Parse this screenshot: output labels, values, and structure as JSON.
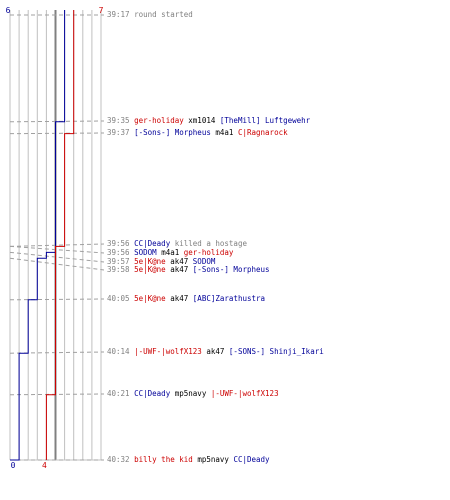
{
  "colors": {
    "t_team": "#cc0000",
    "ct_team": "#000099",
    "grid": "#c0c0c0",
    "axis": "#808080",
    "dashed": "#a0a0a0",
    "neutral": "#808080"
  },
  "counts": {
    "ct_start": "6",
    "t_start": "7",
    "ct_end": "0",
    "t_end": "4"
  },
  "events": [
    {
      "time": "39:17",
      "type": "note",
      "text": "round started"
    },
    {
      "time": "39:35",
      "type": "kill",
      "killer": "ger-holiday",
      "killer_team": "t",
      "weapon": "xm1014",
      "victim": "[TheMill] Luftgewehr",
      "victim_team": "ct"
    },
    {
      "time": "39:37",
      "type": "kill",
      "killer": "[-Sons-] Morpheus",
      "killer_team": "ct",
      "weapon": "m4a1",
      "victim": "C|Ragnarock",
      "victim_team": "t"
    },
    {
      "time": "39:56",
      "type": "hostage",
      "killer": "CC|Deady",
      "killer_team": "ct",
      "text": "killed a hostage"
    },
    {
      "time": "39:56",
      "type": "kill",
      "killer": "SODOM",
      "killer_team": "ct",
      "weapon": "m4a1",
      "victim": "ger-holiday",
      "victim_team": "t"
    },
    {
      "time": "39:57",
      "type": "kill",
      "killer": "5e|K@ne",
      "killer_team": "t",
      "weapon": "ak47",
      "victim": "SODOM",
      "victim_team": "ct"
    },
    {
      "time": "39:58",
      "type": "kill",
      "killer": "5e|K@ne",
      "killer_team": "t",
      "weapon": "ak47",
      "victim": "[-Sons-] Morpheus",
      "victim_team": "ct"
    },
    {
      "time": "40:05",
      "type": "kill",
      "killer": "5e|K@ne",
      "killer_team": "t",
      "weapon": "ak47",
      "victim": "[ABC]Zarathustra",
      "victim_team": "ct"
    },
    {
      "time": "40:14",
      "type": "kill",
      "killer": "|-UWF-|wolfX123",
      "killer_team": "t",
      "weapon": "ak47",
      "victim": "[-SONS-] Shinji_Ikari",
      "victim_team": "ct"
    },
    {
      "time": "40:21",
      "type": "kill",
      "killer": "CC|Deady",
      "killer_team": "ct",
      "weapon": "mp5navy",
      "victim": "|-UWF-|wolfX123",
      "victim_team": "t"
    },
    {
      "time": "40:32",
      "type": "kill",
      "killer": "billy the kid",
      "killer_team": "t",
      "weapon": "mp5navy",
      "victim": "CC|Deady",
      "victim_team": "ct"
    }
  ]
}
